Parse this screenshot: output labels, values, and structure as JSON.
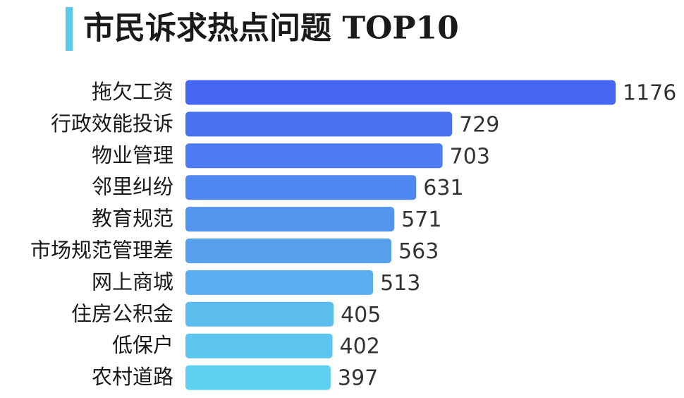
{
  "chart_data": {
    "type": "bar",
    "orientation": "horizontal",
    "title": "市民诉求热点问题 TOP10",
    "categories": [
      "拖欠工资",
      "行政效能投诉",
      "物业管理",
      "邻里纠纷",
      "教育规范",
      "市场规范管理差",
      "网上商城",
      "住房公积金",
      "低保户",
      "农村道路"
    ],
    "values": [
      1176,
      729,
      703,
      631,
      571,
      563,
      513,
      405,
      402,
      397
    ],
    "colors": [
      "#4466f2",
      "#4a70f2",
      "#4d7cf2",
      "#4f88f0",
      "#5394ee",
      "#56a0ee",
      "#58aeee",
      "#5bbcee",
      "#5dc6ee",
      "#60d0f0"
    ]
  }
}
